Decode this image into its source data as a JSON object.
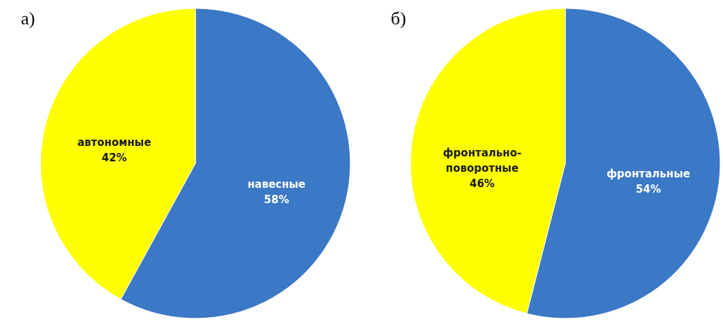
{
  "chart_data": [
    {
      "type": "pie",
      "title": "а)",
      "categories": [
        "навесные",
        "автономные"
      ],
      "values": [
        58,
        42
      ],
      "colors": [
        "#3b78c6",
        "#ffff00"
      ],
      "value_labels": [
        "58%",
        "42%"
      ],
      "legend": false
    },
    {
      "type": "pie",
      "title": "б)",
      "categories": [
        "фронтальные",
        "фронтально-поворотные"
      ],
      "values": [
        54,
        46
      ],
      "colors": [
        "#3b78c6",
        "#ffff00"
      ],
      "value_labels": [
        "54%",
        "46%"
      ],
      "legend": false
    }
  ]
}
